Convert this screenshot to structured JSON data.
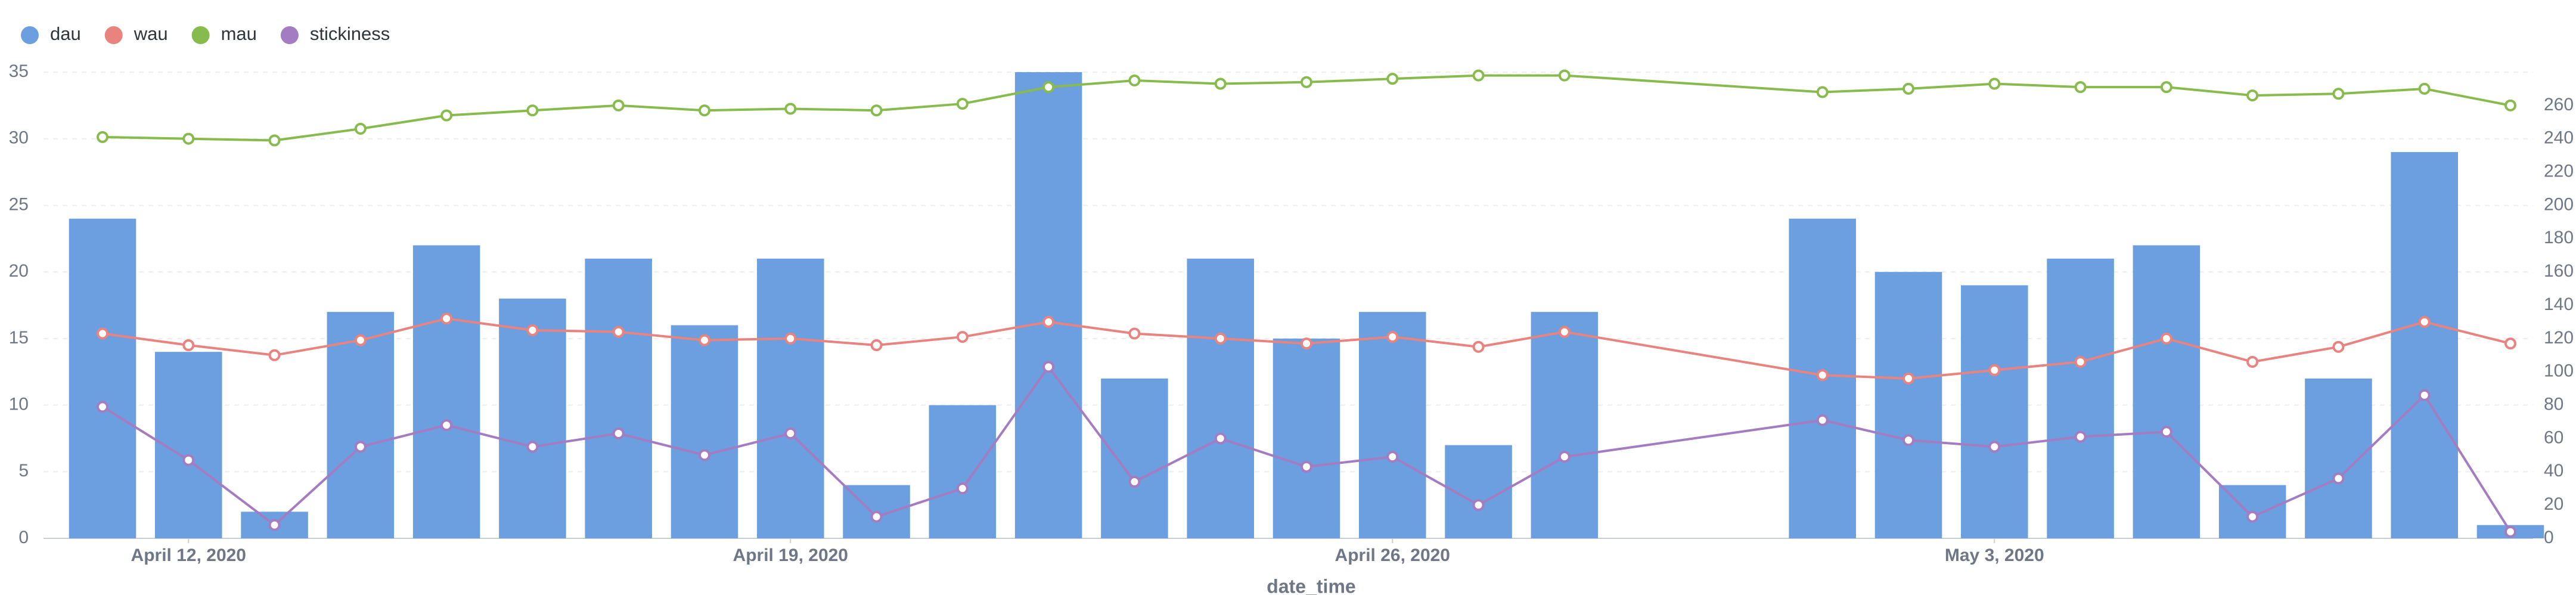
{
  "chart_data": {
    "type": "bar",
    "x": [
      "2020-04-11",
      "2020-04-12",
      "2020-04-13",
      "2020-04-14",
      "2020-04-15",
      "2020-04-16",
      "2020-04-17",
      "2020-04-18",
      "2020-04-19",
      "2020-04-20",
      "2020-04-21",
      "2020-04-22",
      "2020-04-23",
      "2020-04-24",
      "2020-04-25",
      "2020-04-26",
      "2020-04-27",
      "2020-04-28",
      "2020-05-01",
      "2020-05-02",
      "2020-05-03",
      "2020-05-04",
      "2020-05-05",
      "2020-05-06",
      "2020-05-07",
      "2020-05-08",
      "2020-05-09"
    ],
    "x_label": "date_time",
    "xticks": [
      {
        "value": "2020-04-12",
        "label": "April 12, 2020"
      },
      {
        "value": "2020-04-19",
        "label": "April 19, 2020"
      },
      {
        "value": "2020-04-26",
        "label": "April 26, 2020"
      },
      {
        "value": "2020-05-03",
        "label": "May 3, 2020"
      }
    ],
    "ylim": [
      0,
      35
    ],
    "yticks": [
      0,
      5,
      10,
      15,
      20,
      25,
      30,
      35
    ],
    "y2lim": [
      0,
      280
    ],
    "y2ticks": [
      0,
      20,
      40,
      60,
      80,
      100,
      120,
      140,
      160,
      180,
      200,
      220,
      240,
      260
    ],
    "grid": true,
    "legend": "top-left",
    "series": [
      {
        "name": "dau",
        "type": "bar",
        "color": "#6b9fdf",
        "values": [
          24,
          14,
          2,
          17,
          22,
          18,
          21,
          16,
          21,
          4,
          10,
          35,
          12,
          21,
          15,
          17,
          7,
          17,
          24,
          20,
          19,
          21,
          22,
          4,
          12,
          29,
          1
        ]
      },
      {
        "name": "wau",
        "type": "line",
        "axis": "y2",
        "color": "#e8837f",
        "values": [
          123,
          116,
          110,
          119,
          132,
          125,
          124,
          119,
          120,
          116,
          121,
          130,
          123,
          120,
          117,
          121,
          115,
          124,
          98,
          96,
          101,
          106,
          120,
          106,
          115,
          130,
          117
        ]
      },
      {
        "name": "mau",
        "type": "line",
        "axis": "y2",
        "color": "#88bb4d",
        "values": [
          241,
          240,
          239,
          246,
          254,
          257,
          260,
          257,
          258,
          257,
          261,
          271,
          275,
          273,
          274,
          276,
          278,
          278,
          268,
          270,
          273,
          271,
          271,
          266,
          267,
          270,
          260
        ]
      },
      {
        "name": "stickiness",
        "type": "line",
        "axis": "y2",
        "color": "#a47cc1",
        "values": [
          79,
          47,
          8,
          55,
          68,
          55,
          63,
          50,
          63,
          13,
          30,
          103,
          34,
          60,
          43,
          49,
          20,
          49,
          71,
          59,
          55,
          61,
          64,
          13,
          36,
          86,
          4
        ]
      }
    ]
  }
}
